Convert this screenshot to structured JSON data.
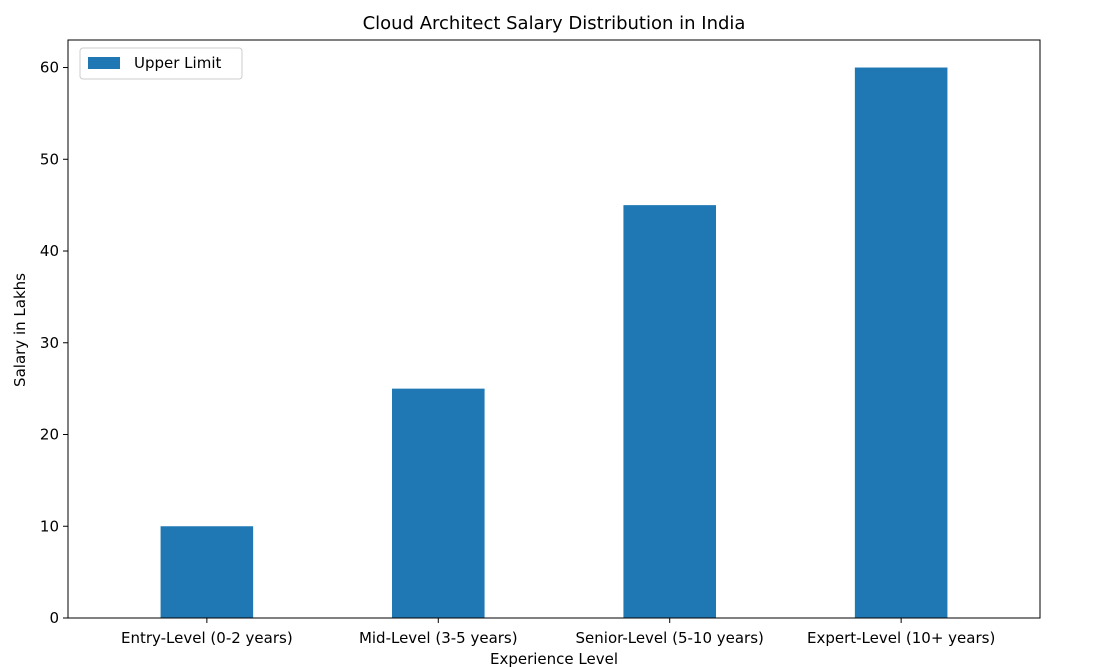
{
  "chart_data": {
    "type": "bar",
    "title": "Cloud Architect Salary Distribution in India",
    "xlabel": "Experience Level",
    "ylabel": "Salary in Lakhs",
    "categories": [
      "Entry-Level (0-2 years)",
      "Mid-Level (3-5 years)",
      "Senior-Level (5-10 years)",
      "Expert-Level (10+ years)"
    ],
    "series": [
      {
        "name": "Upper Limit",
        "values": [
          10,
          25,
          45,
          60
        ],
        "color": "#1f77b4"
      }
    ],
    "ylim": [
      0,
      63
    ],
    "yticks": [
      0,
      10,
      20,
      30,
      40,
      50,
      60
    ],
    "ytick_labels": [
      "0",
      "10",
      "20",
      "30",
      "40",
      "50",
      "60"
    ],
    "legend": "top-left",
    "grid": false
  }
}
